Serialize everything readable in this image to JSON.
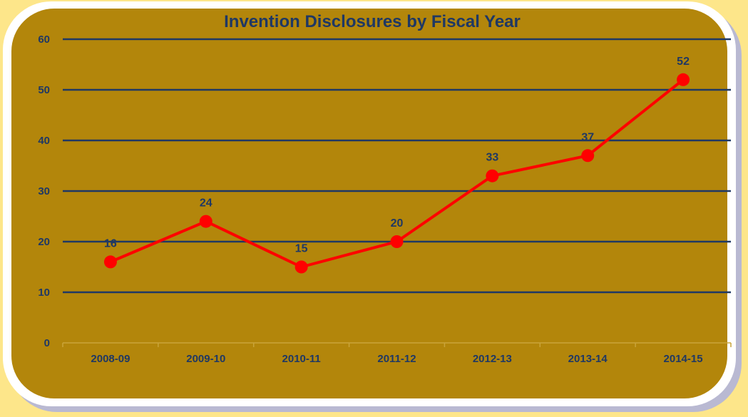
{
  "chart_data": {
    "type": "line",
    "title": "Invention Disclosures by Fiscal Year",
    "xlabel": "",
    "ylabel": "",
    "categories": [
      "2008-09",
      "2009-10",
      "2010-11",
      "2011-12",
      "2012-13",
      "2013-14",
      "2014-15"
    ],
    "series": [
      {
        "values": [
          16,
          24,
          15,
          20,
          33,
          37,
          52
        ],
        "color": "#ff0000"
      }
    ],
    "ylim": [
      0,
      60
    ],
    "yticks": [
      0,
      10,
      20,
      30,
      40,
      50,
      60
    ],
    "grid": true,
    "legend": "none",
    "data_labels": [
      "16",
      "24",
      "15",
      "20",
      "33",
      "37",
      "52"
    ],
    "colors": {
      "background": "#fde68a",
      "plot_area": "#b3860b",
      "gridline": "#1f3864",
      "text": "#1f3864",
      "line": "#ff0000"
    }
  }
}
